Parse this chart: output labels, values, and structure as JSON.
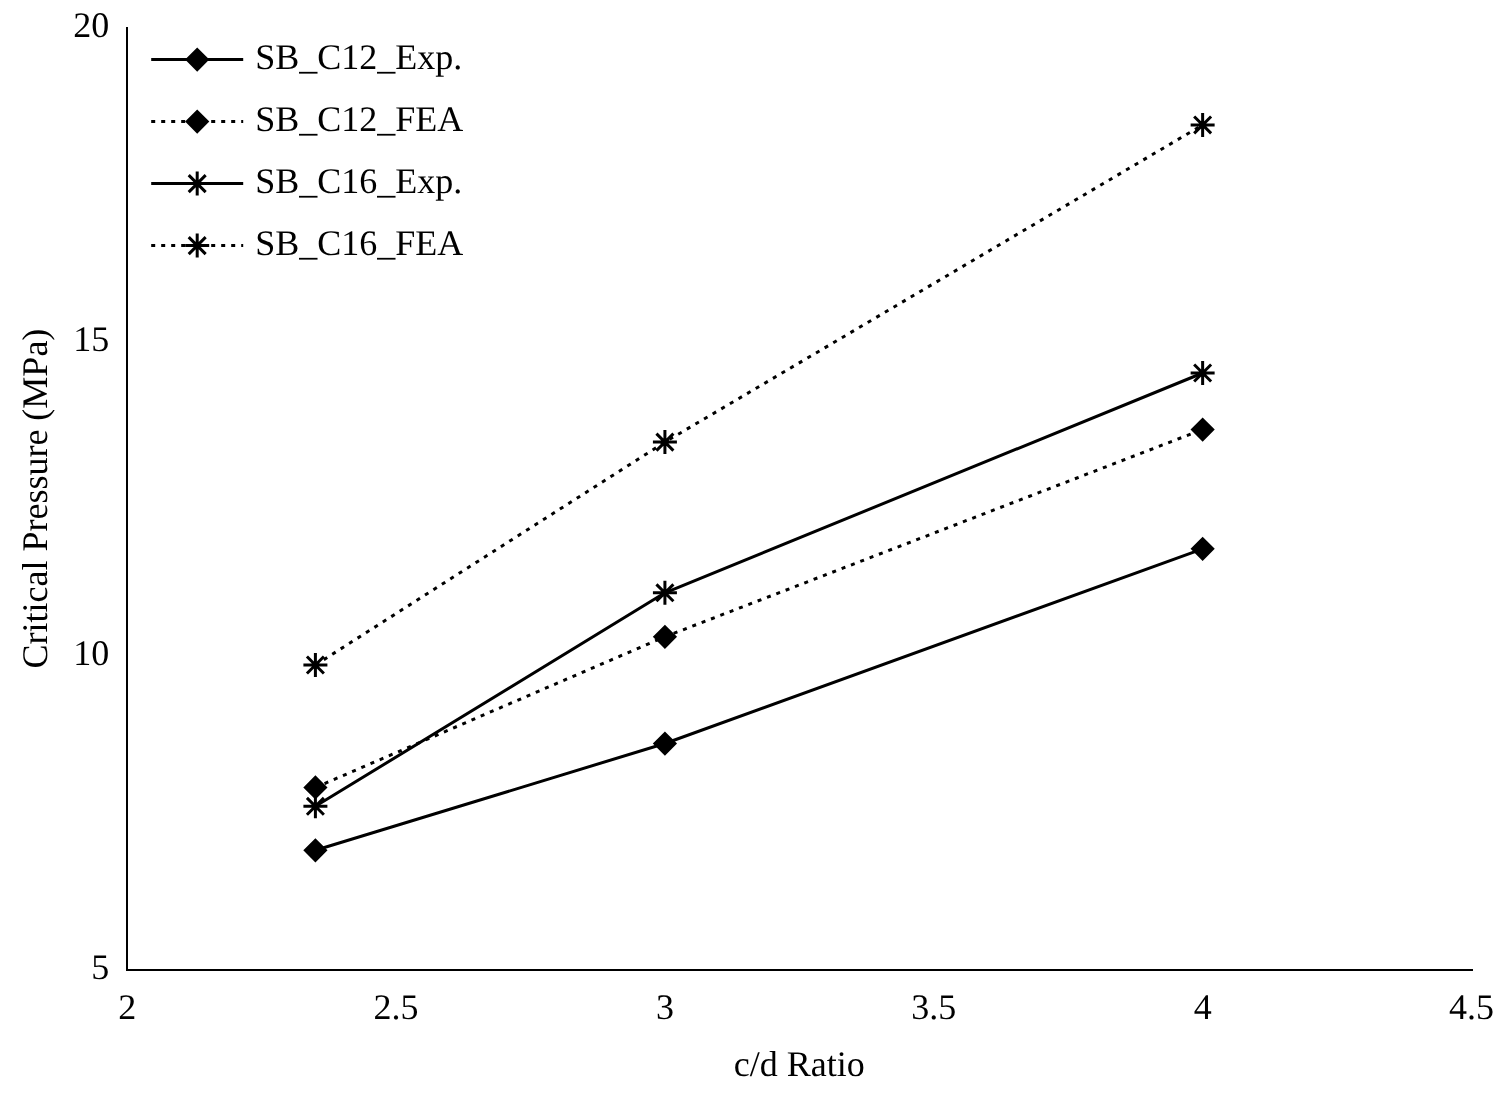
{
  "chart_data": {
    "type": "line",
    "xlabel": "c/d Ratio",
    "ylabel": "Critical Pressure (MPa)",
    "x": [
      2.35,
      3,
      4
    ],
    "xlim": [
      2,
      4.5
    ],
    "xticks": [
      2,
      2.5,
      3,
      3.5,
      4,
      4.5
    ],
    "ylim": [
      5,
      20
    ],
    "yticks": [
      5,
      10,
      15,
      20
    ],
    "grid": false,
    "legend": "top left",
    "series": [
      {
        "name": "SB_C12_Exp.",
        "color": "#000000",
        "values": [
          6.9,
          8.6,
          11.7
        ],
        "marker": "diamond",
        "line_style": "solid"
      },
      {
        "name": "SB_C12_FEA",
        "color": "#000000",
        "values": [
          7.9,
          10.3,
          13.6
        ],
        "marker": "diamond",
        "line_style": "dotted"
      },
      {
        "name": "SB_C16_Exp.",
        "color": "#000000",
        "values": [
          7.6,
          11.0,
          14.5
        ],
        "marker": "cross",
        "line_style": "solid"
      },
      {
        "name": "SB_C16_FEA",
        "color": "#000000",
        "values": [
          9.85,
          13.4,
          18.45
        ],
        "marker": "cross",
        "line_style": "dotted"
      }
    ]
  }
}
